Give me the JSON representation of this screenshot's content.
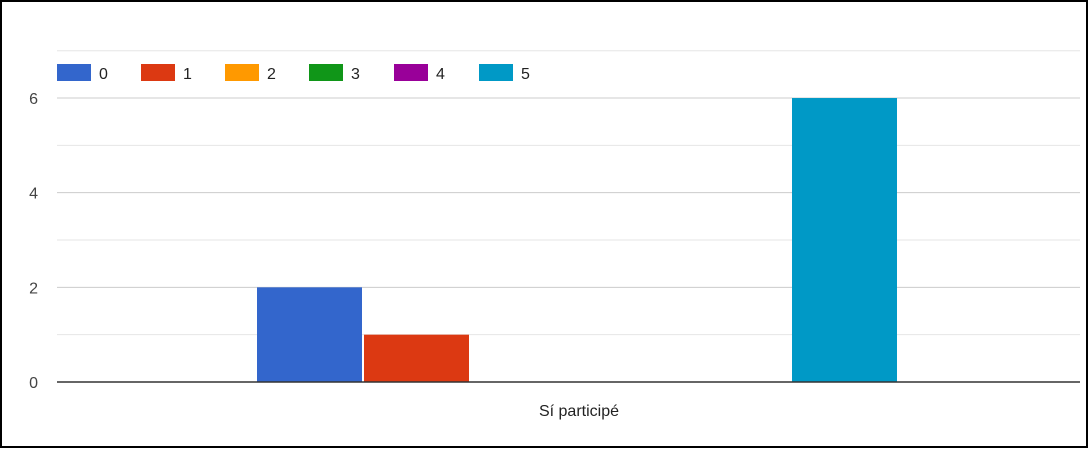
{
  "chart_data": {
    "type": "bar",
    "categories": [
      "Sí participé"
    ],
    "series": [
      {
        "name": "0",
        "values": [
          2
        ],
        "color": "#3366CC"
      },
      {
        "name": "1",
        "values": [
          1
        ],
        "color": "#DC3912"
      },
      {
        "name": "2",
        "values": [
          0
        ],
        "color": "#FF9900"
      },
      {
        "name": "3",
        "values": [
          0
        ],
        "color": "#109618"
      },
      {
        "name": "4",
        "values": [
          0
        ],
        "color": "#990099"
      },
      {
        "name": "5",
        "values": [
          6
        ],
        "color": "#0099C6"
      }
    ],
    "y_ticks": [
      "0",
      "2",
      "4",
      "6"
    ],
    "ylim": [
      0,
      7
    ],
    "grid": true,
    "legend_position": "top-left",
    "title": "",
    "xlabel": "",
    "ylabel": ""
  }
}
